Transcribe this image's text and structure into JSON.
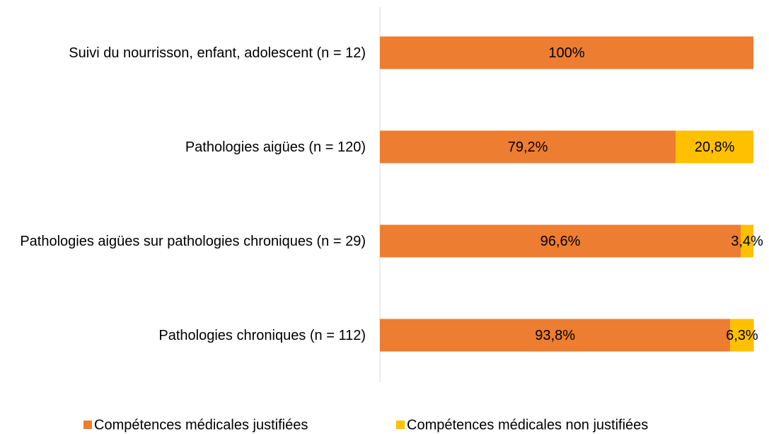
{
  "chart_data": {
    "type": "bar",
    "orientation": "horizontal",
    "stacked": true,
    "categories": [
      "Suivi du nourrisson, enfant, adolescent (n = 12)",
      "Pathologies aigües (n = 120)",
      "Pathologies aigües sur pathologies chroniques (n = 29)",
      "Pathologies chroniques (n = 112)"
    ],
    "xlim": [
      0,
      100
    ],
    "series": [
      {
        "name": "Compétences médicales justifiées",
        "color": "#ED7D31",
        "values": [
          100,
          79.2,
          96.6,
          93.8
        ],
        "value_labels": [
          "100%",
          "79,2%",
          "96,6%",
          "93,8%"
        ]
      },
      {
        "name": "Compétences médicales non justifiées",
        "color": "#FFC000",
        "values": [
          null,
          20.8,
          3.4,
          6.3
        ],
        "value_labels": [
          null,
          "20,8%",
          "3,4%",
          "6,3%"
        ]
      }
    ],
    "legend": "bottom"
  }
}
